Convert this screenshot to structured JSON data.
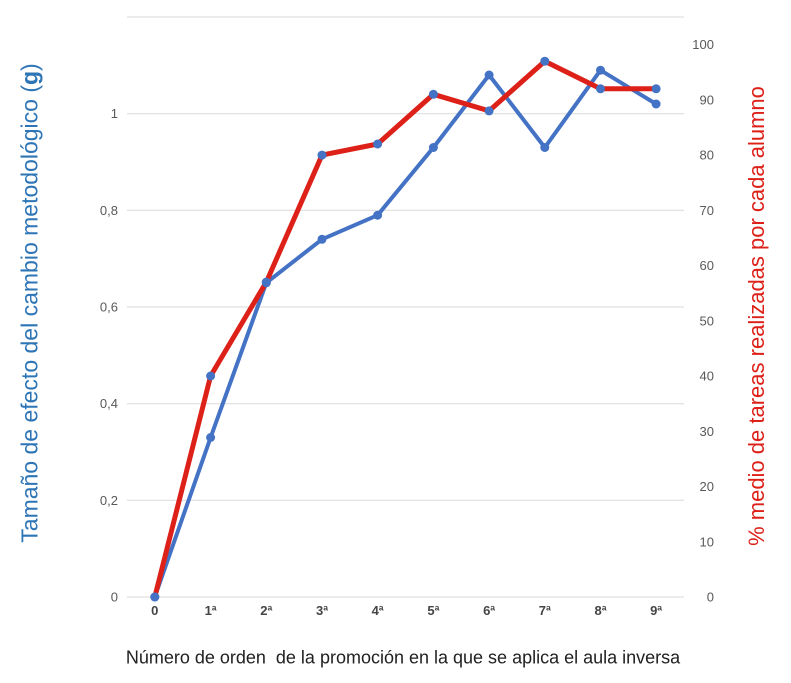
{
  "chart_data": {
    "type": "line",
    "categories": [
      "0",
      "1ª",
      "2ª",
      "3ª",
      "4ª",
      "5ª",
      "6ª",
      "7ª",
      "8ª",
      "9ª"
    ],
    "series": [
      {
        "id": "effect-size-g",
        "axis": "left",
        "color": "#4472C4",
        "line_width": 4,
        "values": [
          0,
          0.33,
          0.65,
          0.74,
          0.79,
          0.93,
          1.08,
          0.93,
          1.09,
          1.02
        ]
      },
      {
        "id": "pct-tareas-realizadas",
        "axis": "right",
        "color": "#DD2119",
        "line_width": 5,
        "values": [
          0,
          40,
          57,
          80,
          82,
          91,
          88,
          97,
          92,
          92
        ]
      }
    ],
    "left_axis": {
      "title_prefix": "Tamaño de efecto del cambio metodológico (",
      "title_bold": "g",
      "title_suffix": ")",
      "min": 0,
      "max": 1.2,
      "gridline_values": [
        0,
        0.2,
        0.4,
        0.6,
        0.8,
        1,
        1.2
      ],
      "tick_values": [
        0,
        0.2,
        0.4,
        0.6,
        0.8,
        1
      ],
      "tick_labels": [
        "0",
        "0,2",
        "0,4",
        "0,6",
        "0,8",
        "1"
      ]
    },
    "right_axis": {
      "title": "% medio de tareas realizadas por cada alumno",
      "min": 0,
      "max": 105,
      "tick_values": [
        0,
        10,
        20,
        30,
        40,
        50,
        60,
        70,
        80,
        90,
        100
      ],
      "tick_labels": [
        "0",
        "10",
        "20",
        "30",
        "40",
        "50",
        "60",
        "70",
        "80",
        "90",
        "100"
      ]
    },
    "x_axis": {
      "title": "Número de orden  de la promoción en la que se aplica el aula inversa"
    },
    "legend": "none",
    "grid": "horizontal",
    "colors": {
      "gridline": "#D9D9D9",
      "tick_label": "#595959",
      "category_label": "#454545",
      "marker": "#4472C4",
      "left_title": "#2E75B6",
      "right_title": "#DD2119",
      "x_title": "#212121"
    }
  }
}
